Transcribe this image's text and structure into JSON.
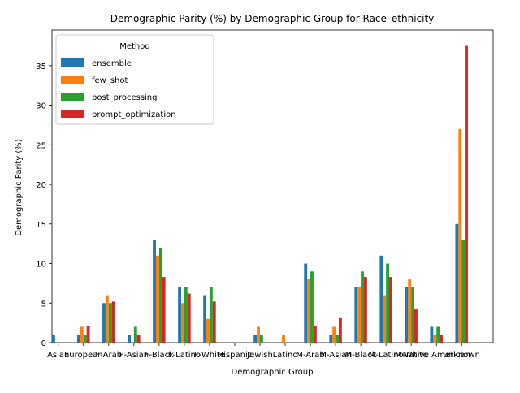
{
  "chart_data": {
    "type": "bar",
    "title": "Demographic Parity (%) by Demographic Group for Race_ethnicity",
    "xlabel": "Demographic Group",
    "ylabel": "Demographic Parity (%)",
    "ylim": [
      0,
      39.5
    ],
    "yticks": [
      0,
      5,
      10,
      15,
      20,
      25,
      30,
      35
    ],
    "grid": false,
    "legend": {
      "title": "Method",
      "position": "top-left"
    },
    "categories": [
      "Asian",
      "European",
      "F-Arab",
      "F-Asian",
      "F-Black",
      "F-Latino",
      "F-White",
      "Hispanic",
      "Jewish",
      "Latino",
      "M-Arab",
      "M-Asian",
      "M-Black",
      "M-Latino",
      "M-White",
      "Native American",
      "unknown"
    ],
    "series": [
      {
        "name": "ensemble",
        "color": "#1f77b4",
        "values": [
          1,
          1,
          5,
          1,
          13,
          7,
          6,
          0,
          1,
          0,
          10,
          1,
          7,
          11,
          7,
          2,
          15
        ]
      },
      {
        "name": "few_shot",
        "color": "#ff7f0e",
        "values": [
          0,
          2,
          6,
          0,
          11,
          5,
          3,
          0,
          2,
          1,
          8,
          2,
          7,
          6,
          8,
          1,
          27
        ]
      },
      {
        "name": "post_processing",
        "color": "#2ca02c",
        "values": [
          0,
          1,
          5,
          2,
          12,
          7,
          7,
          0,
          1,
          0,
          9,
          1,
          9,
          10,
          7,
          2,
          13
        ]
      },
      {
        "name": "prompt_optimization",
        "color": "#d62728",
        "values": [
          0,
          2.1,
          5.2,
          1,
          8.3,
          6.2,
          5.2,
          0,
          0,
          0,
          2.1,
          3.1,
          8.3,
          8.3,
          4.2,
          1,
          37.5
        ]
      }
    ]
  }
}
